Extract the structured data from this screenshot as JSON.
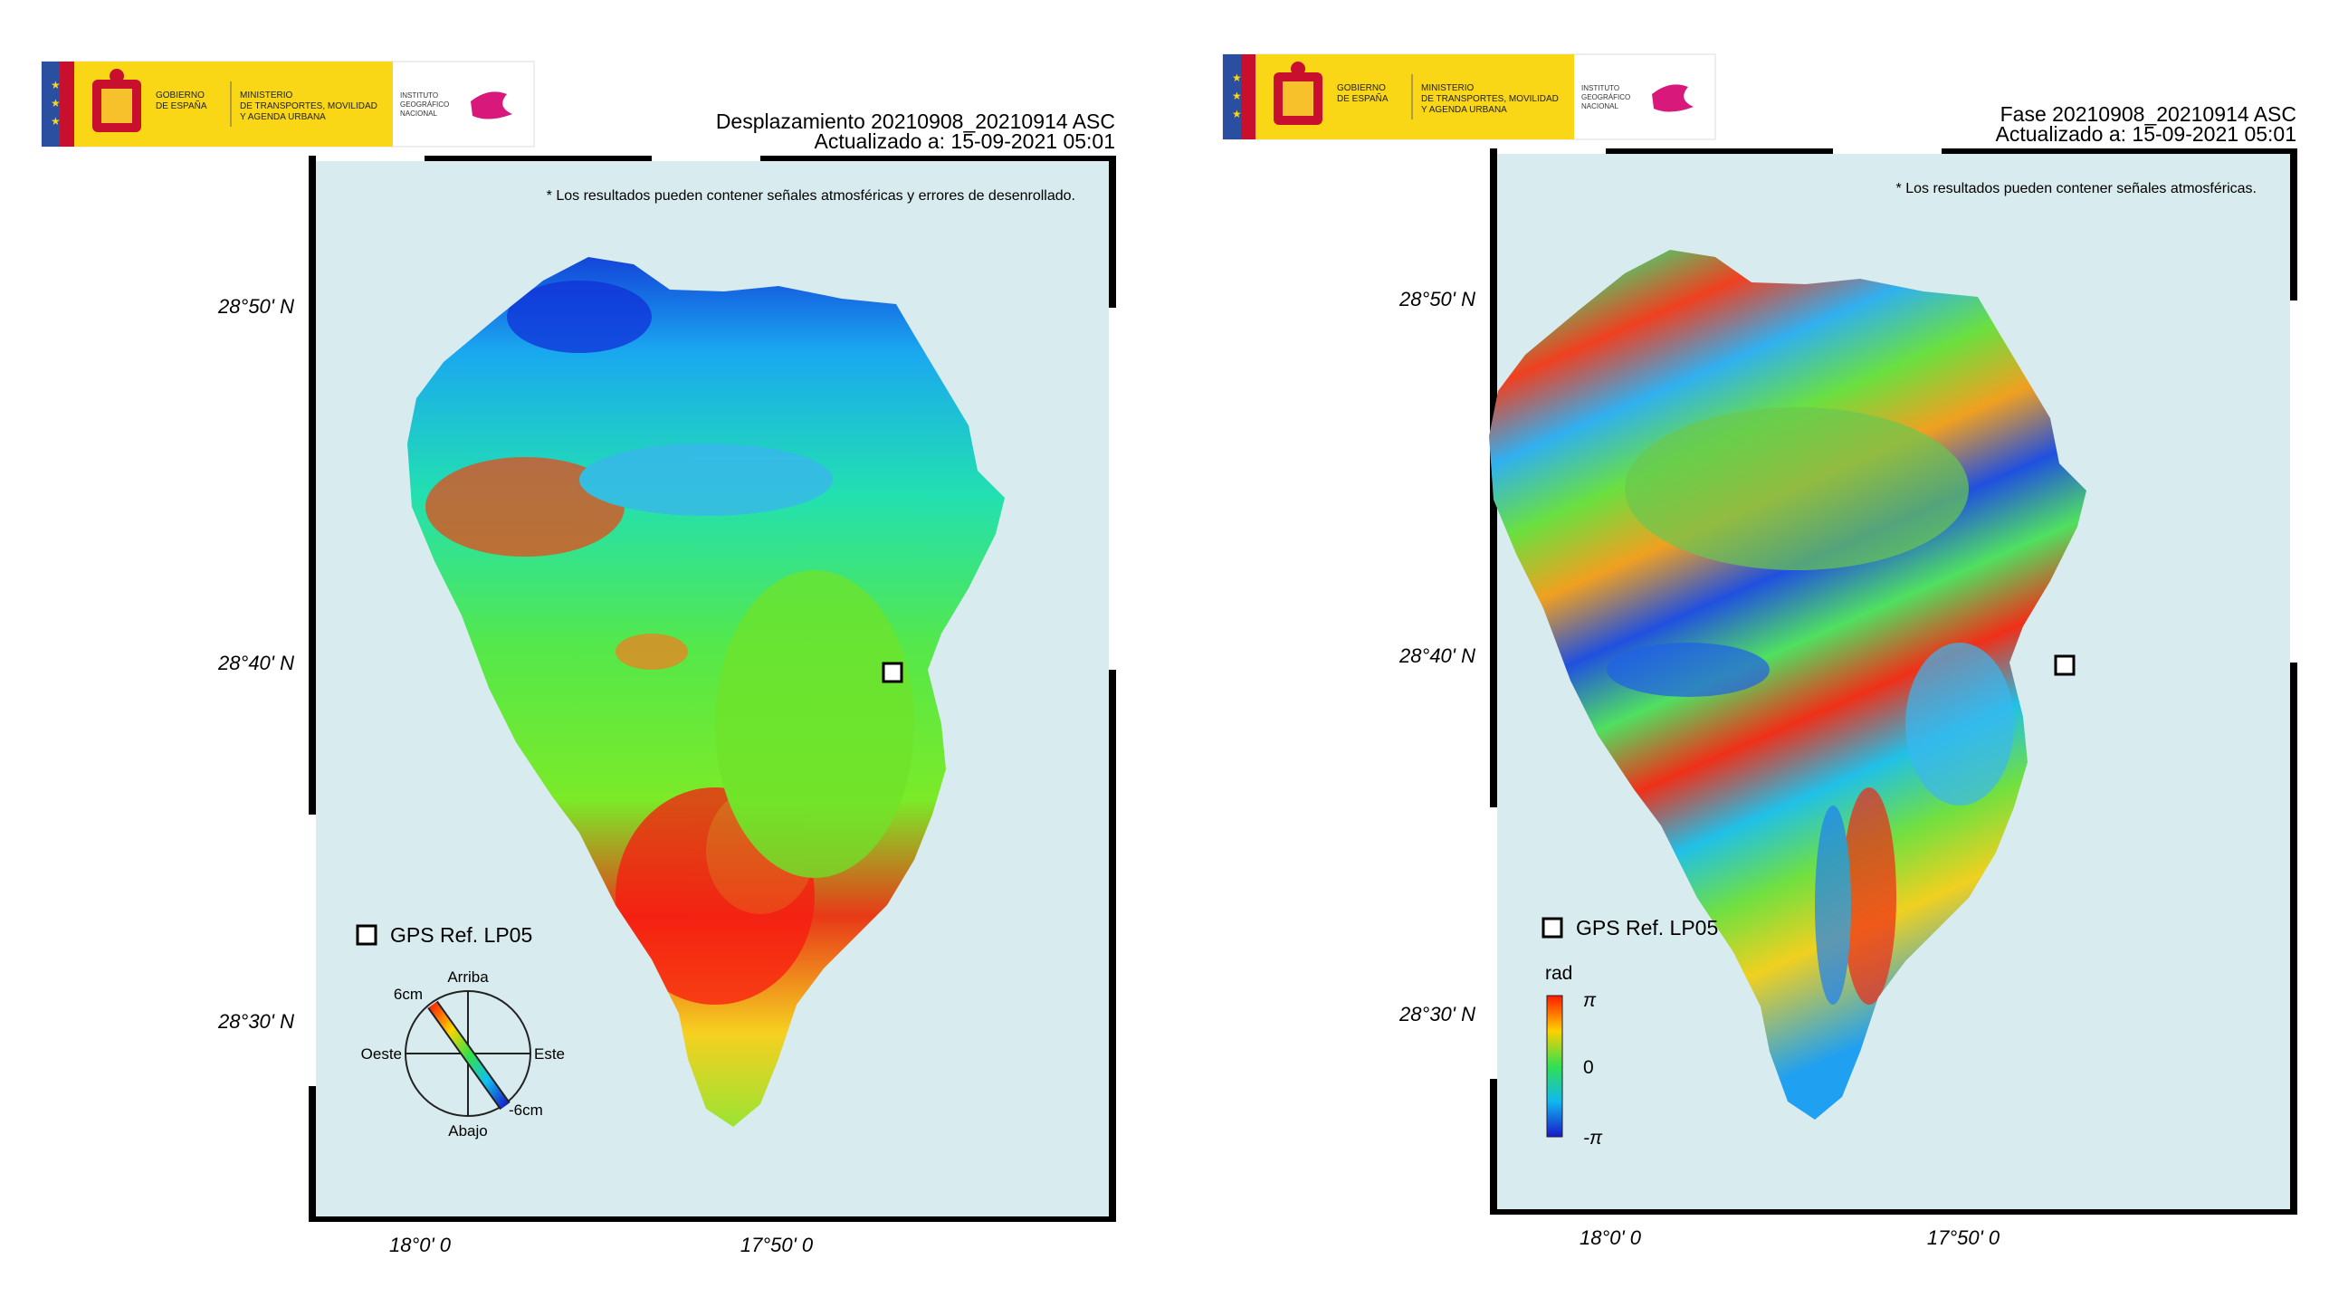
{
  "panels": [
    {
      "logos": {
        "gobierno": "GOBIERNO\nDE ESPAÑA",
        "ministerio": "MINISTERIO\nDE TRANSPORTES, MOVILIDAD\nY AGENDA URBANA",
        "ign": "INSTITUTO\nGEOGRÁFICO\nNACIONAL"
      },
      "title_line1": "Desplazamiento 20210908_20210914 ASC",
      "title_line2": "Actualizado a: 15-09-2021 05:01",
      "note": "* Los resultados pueden contener señales atmosféricas y errores de desenrollado.",
      "lat_labels": [
        "28°50' N",
        "28°40' N",
        "28°30' N"
      ],
      "lon_labels": [
        "18°0' 0",
        "17°50' 0"
      ],
      "gps_label": "GPS Ref. LP05",
      "legend": {
        "up": "Arriba",
        "down": "Abajo",
        "west": "Oeste",
        "east": "Este",
        "max": "6cm",
        "min": "-6cm"
      }
    },
    {
      "logos": {
        "gobierno": "GOBIERNO\nDE ESPAÑA",
        "ministerio": "MINISTERIO\nDE TRANSPORTES, MOVILIDAD\nY AGENDA URBANA",
        "ign": "INSTITUTO\nGEOGRÁFICO\nNACIONAL"
      },
      "title_line1": "Fase 20210908_20210914 ASC",
      "title_line2": "Actualizado a: 15-09-2021 05:01",
      "note": "* Los resultados pueden contener señales atmosféricas.",
      "lat_labels": [
        "28°50' N",
        "28°40' N",
        "28°30' N"
      ],
      "lon_labels": [
        "18°0' 0",
        "17°50' 0"
      ],
      "gps_label": "GPS Ref. LP05",
      "colorbar": {
        "unit": "rad",
        "max": "π",
        "mid": "0",
        "min": "-π"
      }
    }
  ],
  "colors": {
    "sea": "#d8ebee",
    "logo_yellow": "#f9d616",
    "logo_red": "#c8102e",
    "logo_blue": "#2a4ea0"
  }
}
